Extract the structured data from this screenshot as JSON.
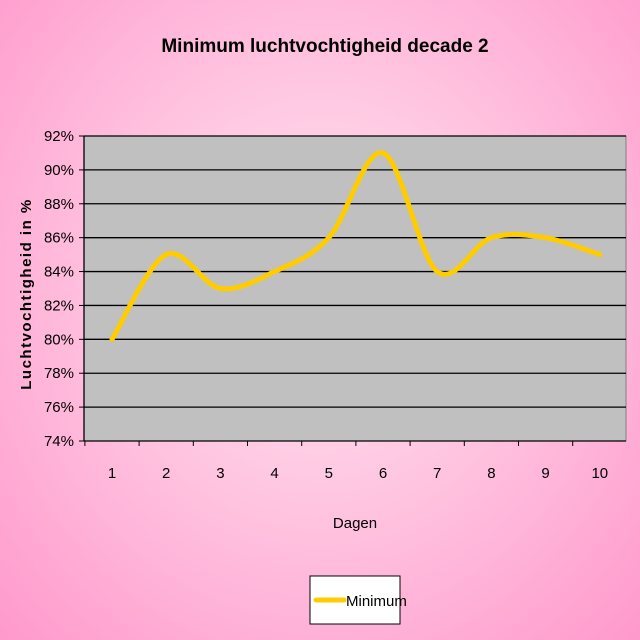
{
  "chart_data": {
    "type": "line",
    "title": "Minimum luchtvochtigheid decade 2",
    "xlabel": "Dagen",
    "ylabel": "Luchtvochtigheid  in  %",
    "categories": [
      "1",
      "2",
      "3",
      "4",
      "5",
      "6",
      "7",
      "8",
      "9",
      "10"
    ],
    "yticks": [
      "74%",
      "76%",
      "78%",
      "80%",
      "82%",
      "84%",
      "86%",
      "88%",
      "90%",
      "92%"
    ],
    "ylim": [
      74,
      92
    ],
    "grid": true,
    "legend_position": "bottom",
    "series": [
      {
        "name": "Minimum",
        "values": [
          80,
          85,
          83,
          84,
          86,
          91,
          84,
          86,
          86,
          85
        ],
        "color": "#ffcc00"
      }
    ],
    "plot_background": "#c0c0c0",
    "page_background": "#ff99cc"
  }
}
